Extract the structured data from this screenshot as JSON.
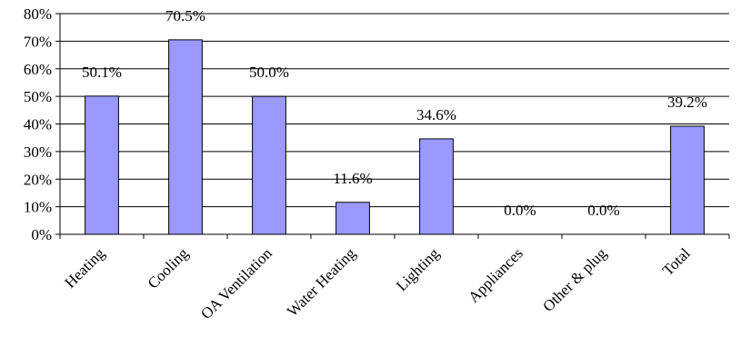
{
  "chart_data": {
    "type": "bar",
    "categories": [
      "Heating",
      "Cooling",
      "OA Ventilation",
      "Water Heating",
      "Lighting",
      "Appliances",
      "Other & plug",
      "Total"
    ],
    "values": [
      50.1,
      70.5,
      50.0,
      11.6,
      34.6,
      0.0,
      0.0,
      39.2
    ],
    "data_labels": [
      "50.1%",
      "70.5%",
      "50.0%",
      "11.6%",
      "34.6%",
      "0.0%",
      "0.0%",
      "39.2%"
    ],
    "ylim": [
      0,
      80
    ],
    "yticks": [
      0,
      10,
      20,
      30,
      40,
      50,
      60,
      70,
      80
    ],
    "ytick_labels": [
      "0%",
      "10%",
      "20%",
      "30%",
      "40%",
      "50%",
      "60%",
      "70%",
      "80%"
    ],
    "grid": true,
    "legend": "none",
    "colors": {
      "bar_fill": "#9999ff",
      "bar_stroke": "#000000",
      "gridline": "#000000",
      "axis": "#000000"
    }
  }
}
